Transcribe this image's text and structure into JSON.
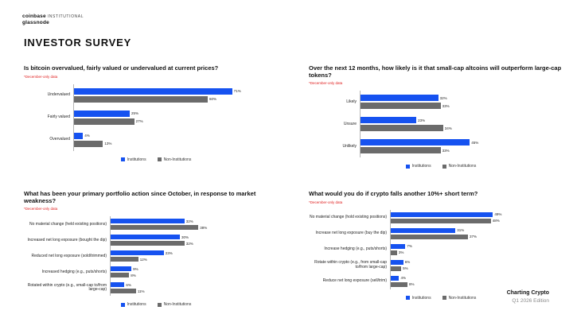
{
  "header": {
    "logo_primary": "coinbase",
    "logo_suffix": "INSTITUTIONAL",
    "logo_secondary": "glassnode",
    "page_title": "INVESTOR SURVEY"
  },
  "colors": {
    "institutions_blue": "#1652f0",
    "non_institutions_gray": "#6b6b6b",
    "note_red": "#e02020"
  },
  "legend": {
    "institutions": "Institutions",
    "non_institutions": "Non-Institutions"
  },
  "footer": {
    "title": "Charting Crypto",
    "subtitle": "Q1 2026 Edition"
  },
  "chart_data": [
    {
      "type": "bar",
      "orientation": "horizontal",
      "title": "Is bitcoin overvalued, fairly valued or undervalued at current prices?",
      "note": "*December-only data",
      "categories": [
        "Undervalued",
        "Fairly valued",
        "Overvalued"
      ],
      "series": [
        {
          "name": "Institutions",
          "values": [
            71,
            25,
            4
          ]
        },
        {
          "name": "Non-Institutions",
          "values": [
            60,
            27,
            13
          ]
        }
      ],
      "unit": "%",
      "xlim": [
        0,
        80
      ],
      "grid": false,
      "legend_position": "bottom"
    },
    {
      "type": "bar",
      "orientation": "horizontal",
      "title": "Over the next 12 months, how likely is it that small-cap altcoins will outperform large-cap tokens?",
      "note": "*December-only data",
      "categories": [
        "Likely",
        "Unsure",
        "Unlikely"
      ],
      "series": [
        {
          "name": "Institutions",
          "values": [
            32,
            23,
            45
          ]
        },
        {
          "name": "Non-Institutions",
          "values": [
            33,
            34,
            33
          ]
        }
      ],
      "unit": "%",
      "xlim": [
        0,
        50
      ],
      "grid": false,
      "legend_position": "bottom"
    },
    {
      "type": "bar",
      "orientation": "horizontal",
      "title": "What has been your primary portfolio action since October, in response to market weakness?",
      "note": "*December-only data",
      "categories": [
        "No material change (held existing positions)",
        "Increased net long exposure (bought the dip)",
        "Reduced net long exposure (sold/trimmed)",
        "Increased hedging (e.g., puts/shorts)",
        "Rotated within crypto (e.g., small-cap to/from large-cap)"
      ],
      "series": [
        {
          "name": "Institutions",
          "values": [
            32,
            30,
            23,
            9,
            6
          ]
        },
        {
          "name": "Non-Institutions",
          "values": [
            38,
            32,
            12,
            8,
            11
          ]
        }
      ],
      "unit": "%",
      "xlim": [
        0,
        40
      ],
      "grid": false,
      "legend_position": "bottom"
    },
    {
      "type": "bar",
      "orientation": "horizontal",
      "title": "What would you do if crypto falls another 10%+ short term?",
      "note": "*December-only data",
      "categories": [
        "No material change (hold existing positions)",
        "Increase net long exposure (buy the dip)",
        "Increase hedging (e.g., puts/shorts)",
        "Rotate within crypto (e.g., from small-cap to/from large-cap)",
        "Reduce net long exposure (sell/trim)"
      ],
      "series": [
        {
          "name": "Institutions",
          "values": [
            49,
            31,
            7,
            6,
            4
          ]
        },
        {
          "name": "Non-Institutions",
          "values": [
            48,
            37,
            3,
            5,
            8
          ]
        }
      ],
      "unit": "%",
      "xlim": [
        0,
        55
      ],
      "grid": false,
      "legend_position": "bottom"
    }
  ]
}
